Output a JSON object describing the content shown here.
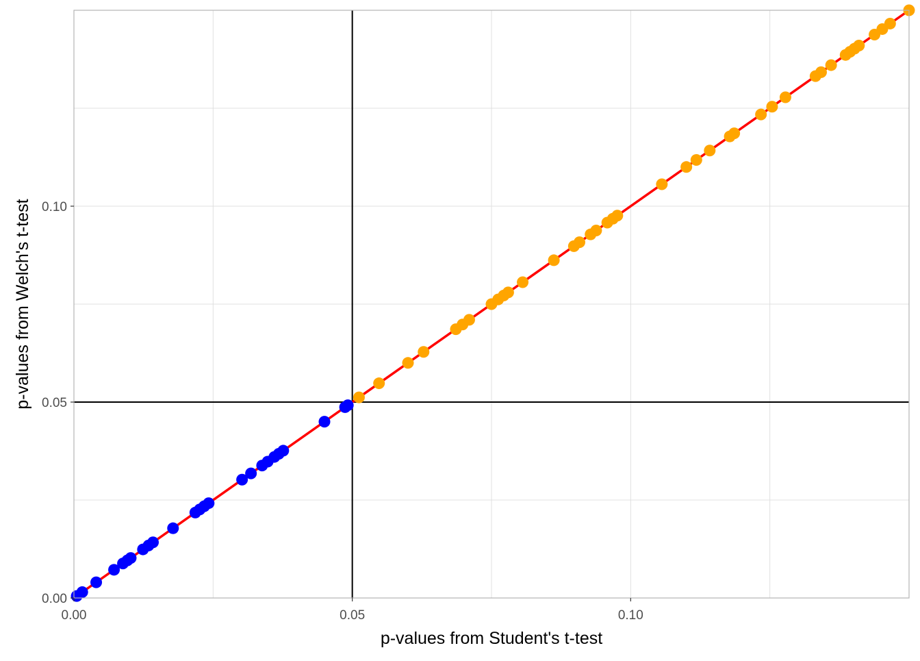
{
  "colors": {
    "significant": "#0000ff",
    "nonsignificant": "#ffa500",
    "identity_line": "#ff0000",
    "reference_lines": "#000000",
    "grid": "#e0e0e0",
    "panel_border": "#b3b3b3"
  },
  "chart_data": {
    "type": "scatter",
    "title": "",
    "xlabel": "p-values from Student's t-test",
    "ylabel": "p-values from Welch's t-test",
    "xlim": [
      0,
      0.15
    ],
    "ylim": [
      0,
      0.15
    ],
    "x_ticks": [
      0.0,
      0.05,
      0.1
    ],
    "x_tick_labels": [
      "0.00",
      "0.05",
      "0.10"
    ],
    "y_ticks": [
      0.0,
      0.05,
      0.1
    ],
    "y_tick_labels": [
      "0.00",
      "0.05",
      "0.10"
    ],
    "grid": true,
    "legend": "none",
    "reference_lines": {
      "x": 0.05,
      "y": 0.05
    },
    "identity_line": {
      "from": [
        0,
        0
      ],
      "to": [
        0.15,
        0.15
      ]
    },
    "series": [
      {
        "color": "#0000ff",
        "x": [
          0.0005,
          0.0015,
          0.004,
          0.0072,
          0.0088,
          0.0096,
          0.0102,
          0.0124,
          0.0134,
          0.0142,
          0.0178,
          0.0218,
          0.0226,
          0.0234,
          0.0242,
          0.0302,
          0.0318,
          0.0338,
          0.0348,
          0.036,
          0.0368,
          0.0376,
          0.045,
          0.0487,
          0.0492
        ],
        "y": [
          0.0005,
          0.0015,
          0.004,
          0.0072,
          0.0088,
          0.0096,
          0.0102,
          0.0124,
          0.0134,
          0.0142,
          0.0178,
          0.0218,
          0.0226,
          0.0234,
          0.0242,
          0.0302,
          0.0318,
          0.0338,
          0.0348,
          0.036,
          0.0368,
          0.0376,
          0.045,
          0.0487,
          0.0492
        ]
      },
      {
        "color": "#ffa500",
        "x": [
          0.0512,
          0.0548,
          0.06,
          0.0628,
          0.0686,
          0.0698,
          0.071,
          0.075,
          0.0762,
          0.0772,
          0.078,
          0.0806,
          0.0862,
          0.0898,
          0.0908,
          0.0928,
          0.0938,
          0.0958,
          0.0968,
          0.0976,
          0.1056,
          0.11,
          0.1118,
          0.1142,
          0.1178,
          0.1186,
          0.1234,
          0.1254,
          0.1278,
          0.1332,
          0.1342,
          0.136,
          0.1386,
          0.1394,
          0.1402,
          0.141,
          0.1438,
          0.1452,
          0.1466,
          0.15
        ],
        "y": [
          0.0512,
          0.0548,
          0.06,
          0.0628,
          0.0686,
          0.0698,
          0.071,
          0.075,
          0.0762,
          0.0772,
          0.078,
          0.0806,
          0.0862,
          0.0898,
          0.0908,
          0.0928,
          0.0938,
          0.0958,
          0.0968,
          0.0976,
          0.1056,
          0.11,
          0.1118,
          0.1142,
          0.1178,
          0.1186,
          0.1234,
          0.1254,
          0.1278,
          0.1332,
          0.1342,
          0.136,
          0.1386,
          0.1394,
          0.1402,
          0.141,
          0.1438,
          0.1452,
          0.1466,
          0.15
        ]
      }
    ]
  }
}
